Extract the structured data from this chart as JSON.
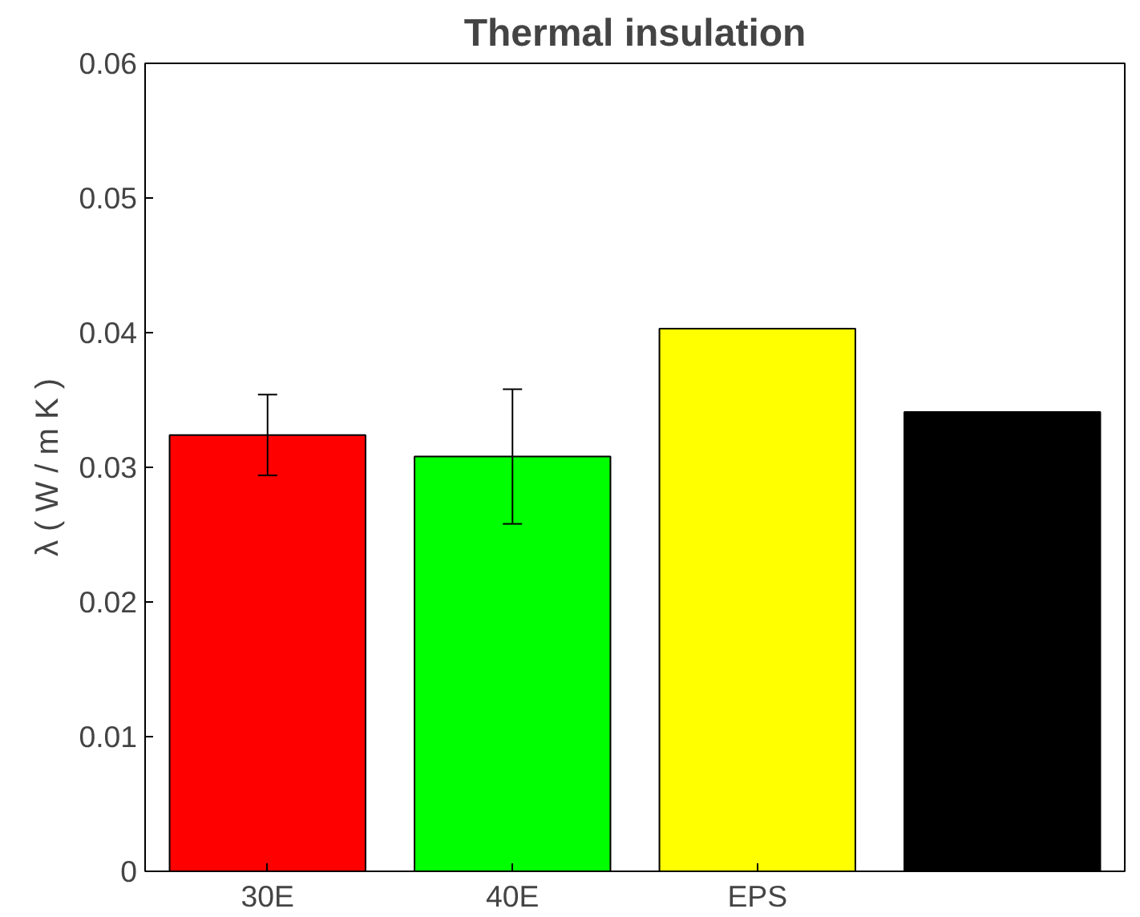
{
  "chart_data": {
    "type": "bar",
    "title": "Thermal insulation",
    "ylabel": "λ ( W / m K )",
    "categories": [
      "30E",
      "40E",
      "EPS",
      null
    ],
    "values": [
      0.0324,
      0.0308,
      0.0403,
      0.0341
    ],
    "colors": [
      "#ff0000",
      "#00ff00",
      "#ffff00",
      "#000000"
    ],
    "errors": [
      0.003,
      0.005,
      null,
      null
    ],
    "ylim": [
      0,
      0.06
    ],
    "yticks": [
      0,
      0.01,
      0.02,
      0.03,
      0.04,
      0.05,
      0.06
    ],
    "grid": false
  }
}
